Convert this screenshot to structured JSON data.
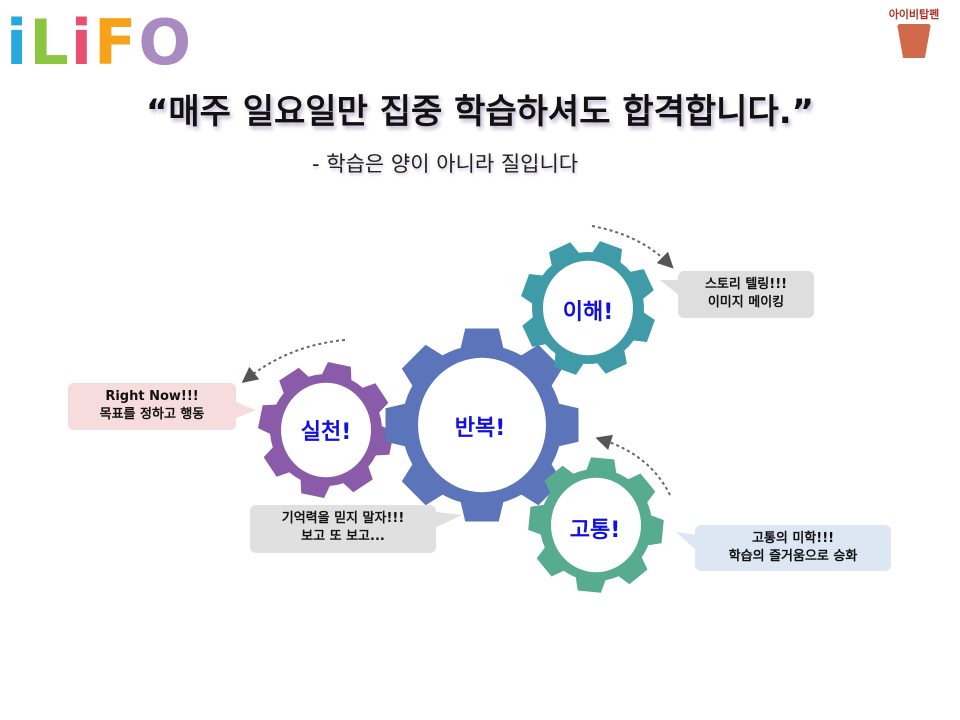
{
  "logo": {
    "text": "iLiFO",
    "letters": [
      "i",
      "L",
      "i",
      "F",
      "O"
    ],
    "colors": [
      "#27a8e0",
      "#8cc63f",
      "#e94f6e",
      "#f7a21b",
      "#a88bc0"
    ]
  },
  "mascot": {
    "text": "아이비탑펜"
  },
  "header": {
    "title": "“매주 일요일만 집중 학습하셔도 합격합니다.”",
    "subtitle": "- 학습은 양이 아니라 질입니다"
  },
  "gears": [
    {
      "label": "실천!",
      "color": "#8a5ba8"
    },
    {
      "label": "반복!",
      "color": "#5b74ba"
    },
    {
      "label": "이해!",
      "color": "#3f9ba8"
    },
    {
      "label": "고통!",
      "color": "#57ab8e"
    }
  ],
  "callouts": [
    {
      "line1": "Right Now!!!",
      "line2": "목표를 정하고 행동",
      "bg": "#f6dcdc"
    },
    {
      "line1": "기억력을 믿지 말자!!!",
      "line2": "보고 또 보고...",
      "bg": "#e0e0e0"
    },
    {
      "line1": "스토리 텔링!!!",
      "line2": "이미지 메이킹",
      "bg": "#dedede"
    },
    {
      "line1": "고통의 미학!!!",
      "line2": "학습의 즐거움으로 승화",
      "bg": "#dde7f3"
    }
  ]
}
